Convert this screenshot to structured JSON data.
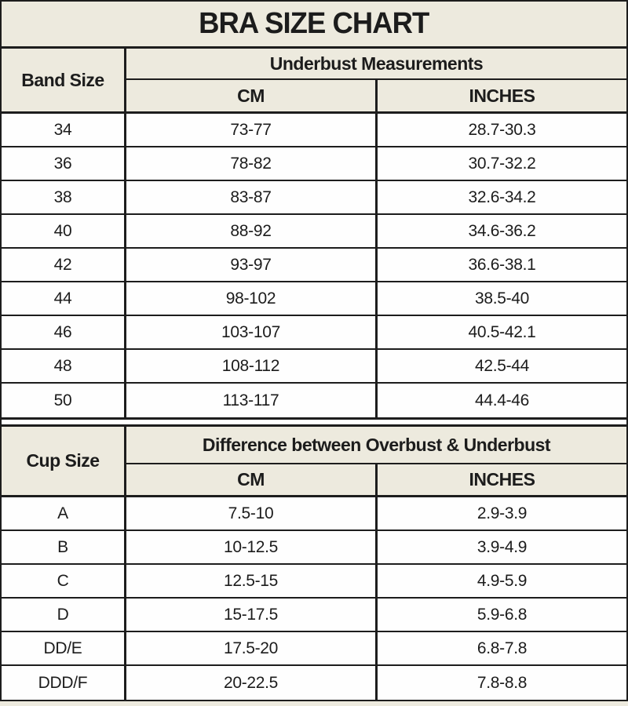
{
  "colors": {
    "background_cream": "#EDEADE",
    "row_background": "#FEFEFE",
    "border_black": "#1D1D1D",
    "text": "#1C1C1C"
  },
  "chart_data": [
    {
      "type": "table",
      "title": "BRA SIZE CHART",
      "corner_header": "Band Size",
      "group_header": "Underbust Measurements",
      "columns": [
        "CM",
        "INCHES"
      ],
      "rows": [
        [
          "34",
          "73-77",
          "28.7-30.3"
        ],
        [
          "36",
          "78-82",
          "30.7-32.2"
        ],
        [
          "38",
          "83-87",
          "32.6-34.2"
        ],
        [
          "40",
          "88-92",
          "34.6-36.2"
        ],
        [
          "42",
          "93-97",
          "36.6-38.1"
        ],
        [
          "44",
          "98-102",
          "38.5-40"
        ],
        [
          "46",
          "103-107",
          "40.5-42.1"
        ],
        [
          "48",
          "108-112",
          "42.5-44"
        ],
        [
          "50",
          "113-117",
          "44.4-46"
        ]
      ]
    },
    {
      "type": "table",
      "corner_header": "Cup Size",
      "group_header": "Difference between Overbust & Underbust",
      "columns": [
        "CM",
        "INCHES"
      ],
      "rows": [
        [
          "A",
          "7.5-10",
          "2.9-3.9"
        ],
        [
          "B",
          "10-12.5",
          "3.9-4.9"
        ],
        [
          "C",
          "12.5-15",
          "4.9-5.9"
        ],
        [
          "D",
          "15-17.5",
          "5.9-6.8"
        ],
        [
          "DD/E",
          "17.5-20",
          "6.8-7.8"
        ],
        [
          "DDD/F",
          "20-22.5",
          "7.8-8.8"
        ]
      ]
    }
  ]
}
